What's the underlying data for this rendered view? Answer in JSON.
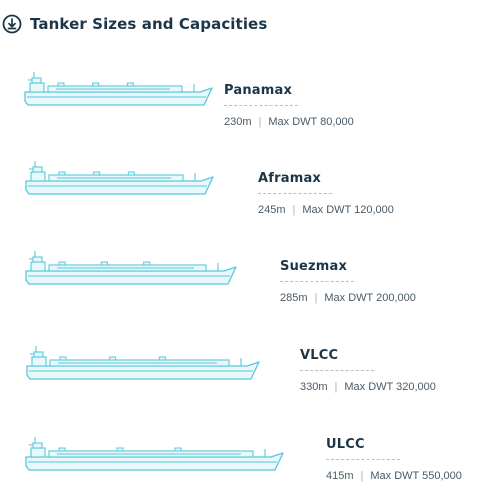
{
  "header": {
    "title": "Tanker Sizes and Capacities",
    "icon": "download-circle-icon"
  },
  "colors": {
    "title": "#1c3648",
    "ship_stroke": "#58c8da",
    "ship_fill": "#e9f8fb",
    "text": "#4a5a66"
  },
  "ships": [
    {
      "id": "panamax",
      "name": "Panamax",
      "length": "230m",
      "capacity": "Max DWT 80,000",
      "length_m": 230
    },
    {
      "id": "aframax",
      "name": "Aframax",
      "length": "245m",
      "capacity": "Max DWT 120,000",
      "length_m": 245
    },
    {
      "id": "suezmax",
      "name": "Suezmax",
      "length": "285m",
      "capacity": "Max DWT 200,000",
      "length_m": 285
    },
    {
      "id": "vlcc",
      "name": "VLCC",
      "length": "330m",
      "capacity": "Max DWT 320,000",
      "length_m": 330
    },
    {
      "id": "ulcc",
      "name": "ULCC",
      "length": "415m",
      "capacity": "Max DWT 550,000",
      "length_m": 415
    }
  ]
}
